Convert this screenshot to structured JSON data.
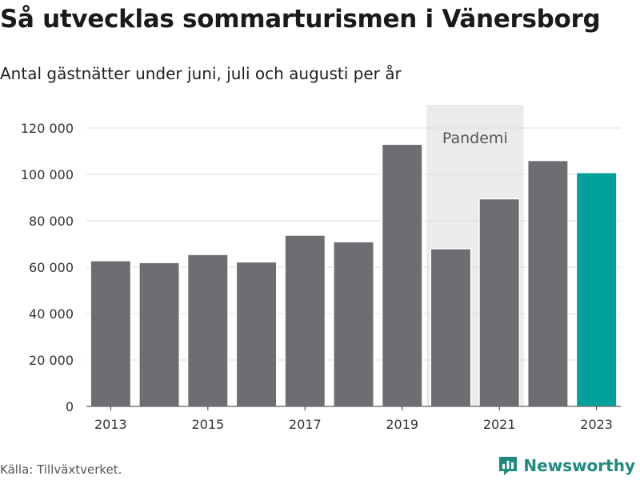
{
  "header": {
    "title": "Så utvecklas sommarturismen i Vänersborg",
    "subtitle": "Antal gästnätter under juni, juli och augusti per år"
  },
  "footer": {
    "source": "Källa: Tillväxtverket.",
    "brand": "Newsworthy"
  },
  "colors": {
    "bar": "#6e6d72",
    "highlight": "#00a19a",
    "band": "#ebebeb",
    "grid": "#dcdcdc",
    "brand": "#1f8a7e"
  },
  "chart_data": {
    "type": "bar",
    "title": "Så utvecklas sommarturismen i Vänersborg",
    "subtitle": "Antal gästnätter under juni, juli och augusti per år",
    "categories": [
      "2013",
      "2014",
      "2015",
      "2016",
      "2017",
      "2018",
      "2019",
      "2020",
      "2021",
      "2022",
      "2023"
    ],
    "values": [
      62800,
      62000,
      65500,
      62300,
      73800,
      71000,
      113000,
      68000,
      89500,
      106000,
      100800
    ],
    "highlight_category": "2023",
    "ylim": [
      0,
      130000
    ],
    "yticks": [
      0,
      20000,
      40000,
      60000,
      80000,
      100000,
      120000
    ],
    "ytick_labels": [
      "0",
      "20 000",
      "40 000",
      "60 000",
      "80 000",
      "100 000",
      "120 000"
    ],
    "xtick_labels": [
      "2013",
      "2015",
      "2017",
      "2019",
      "2021",
      "2023"
    ],
    "annotations": [
      {
        "type": "band",
        "from": "2020",
        "to": "2021",
        "label": "Pandemi"
      }
    ],
    "grid": true,
    "legend": "none"
  }
}
